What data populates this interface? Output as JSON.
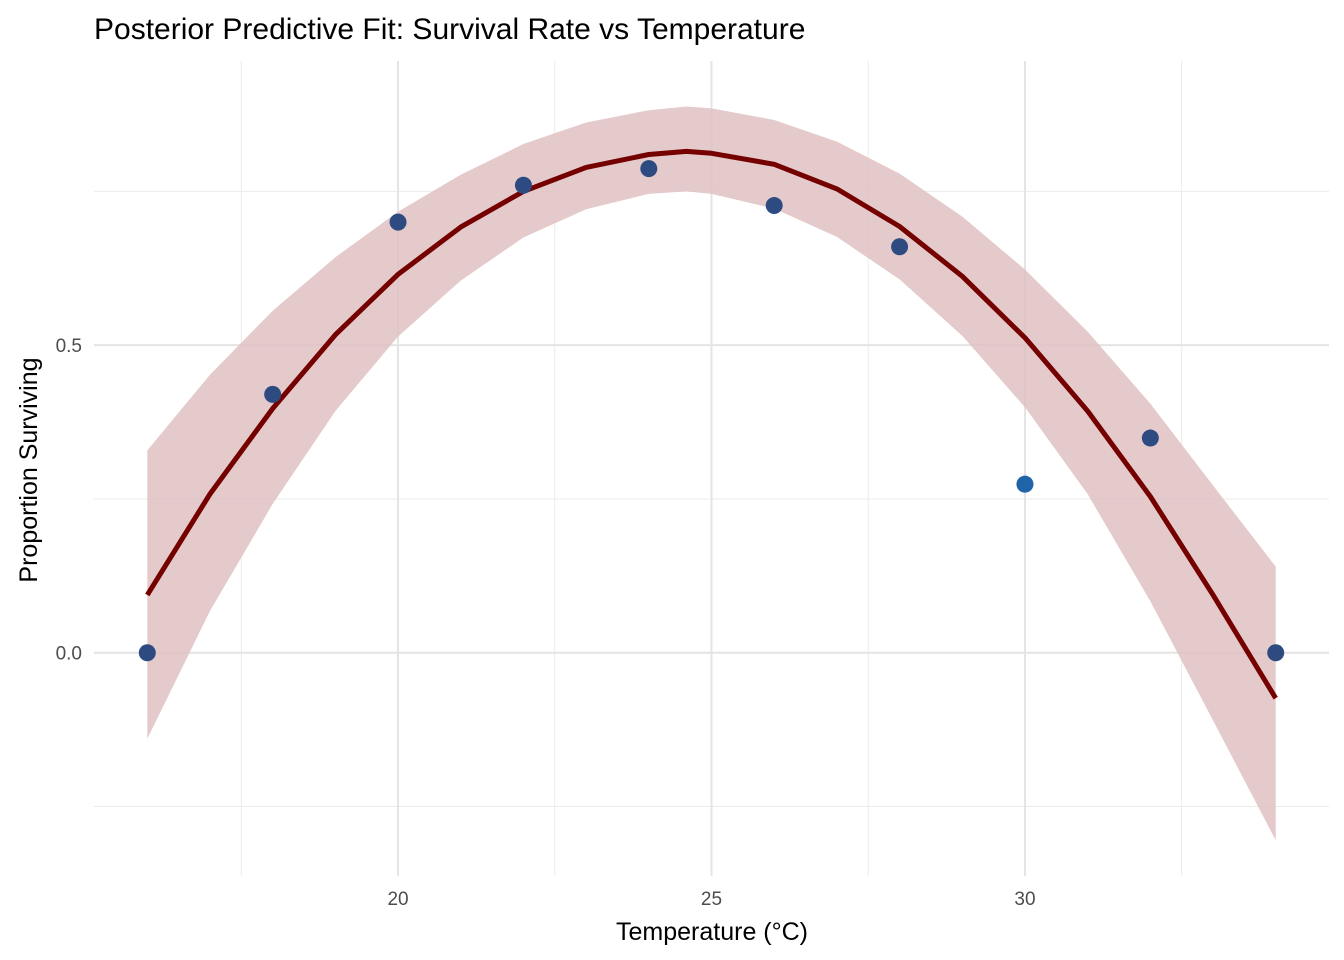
{
  "chart_data": {
    "type": "line",
    "title": "Posterior Predictive Fit: Survival Rate vs Temperature",
    "xlabel": "Temperature (°C)",
    "ylabel": "Proportion Surviving",
    "xlim": [
      15.15,
      34.85
    ],
    "ylim": [
      -0.363,
      0.962
    ],
    "x_ticks": [
      20,
      25,
      30
    ],
    "x_tick_labels": [
      "20",
      "25",
      "30"
    ],
    "x_minor_ticks": [
      17.5,
      22.5,
      27.5,
      32.5
    ],
    "y_ticks": [
      0.0,
      0.5
    ],
    "y_tick_labels": [
      "0.0",
      "0.5"
    ],
    "y_minor_ticks": [
      -0.25,
      0.25,
      0.75
    ],
    "grid": true,
    "legend": "none",
    "colors": {
      "curve": "#750000",
      "band": "#dfc1c2",
      "point_fill": "#1f64a8",
      "point_dark": "#2e4b81",
      "grid": "#ebebeb"
    },
    "observed": {
      "x": [
        16,
        18,
        20,
        22,
        24,
        26,
        28,
        30,
        32,
        34
      ],
      "y": [
        0.0,
        0.42,
        0.7,
        0.76,
        0.787,
        0.727,
        0.66,
        0.274,
        0.349,
        0.0
      ]
    },
    "fit": {
      "x": [
        16,
        17,
        18,
        19,
        20,
        21,
        22,
        23,
        24,
        24.6,
        25,
        26,
        27,
        28,
        29,
        30,
        31,
        32,
        33,
        34
      ],
      "mean": [
        0.094,
        0.258,
        0.397,
        0.517,
        0.615,
        0.692,
        0.75,
        0.789,
        0.81,
        0.815,
        0.812,
        0.794,
        0.754,
        0.693,
        0.612,
        0.512,
        0.393,
        0.254,
        0.094,
        -0.074
      ],
      "lower": [
        -0.14,
        0.068,
        0.242,
        0.393,
        0.514,
        0.605,
        0.675,
        0.721,
        0.746,
        0.75,
        0.746,
        0.722,
        0.676,
        0.607,
        0.515,
        0.399,
        0.258,
        0.084,
        -0.11,
        -0.305
      ],
      "upper": [
        0.329,
        0.452,
        0.556,
        0.643,
        0.717,
        0.777,
        0.827,
        0.862,
        0.882,
        0.888,
        0.885,
        0.866,
        0.831,
        0.779,
        0.709,
        0.623,
        0.522,
        0.405,
        0.272,
        0.14
      ]
    }
  }
}
